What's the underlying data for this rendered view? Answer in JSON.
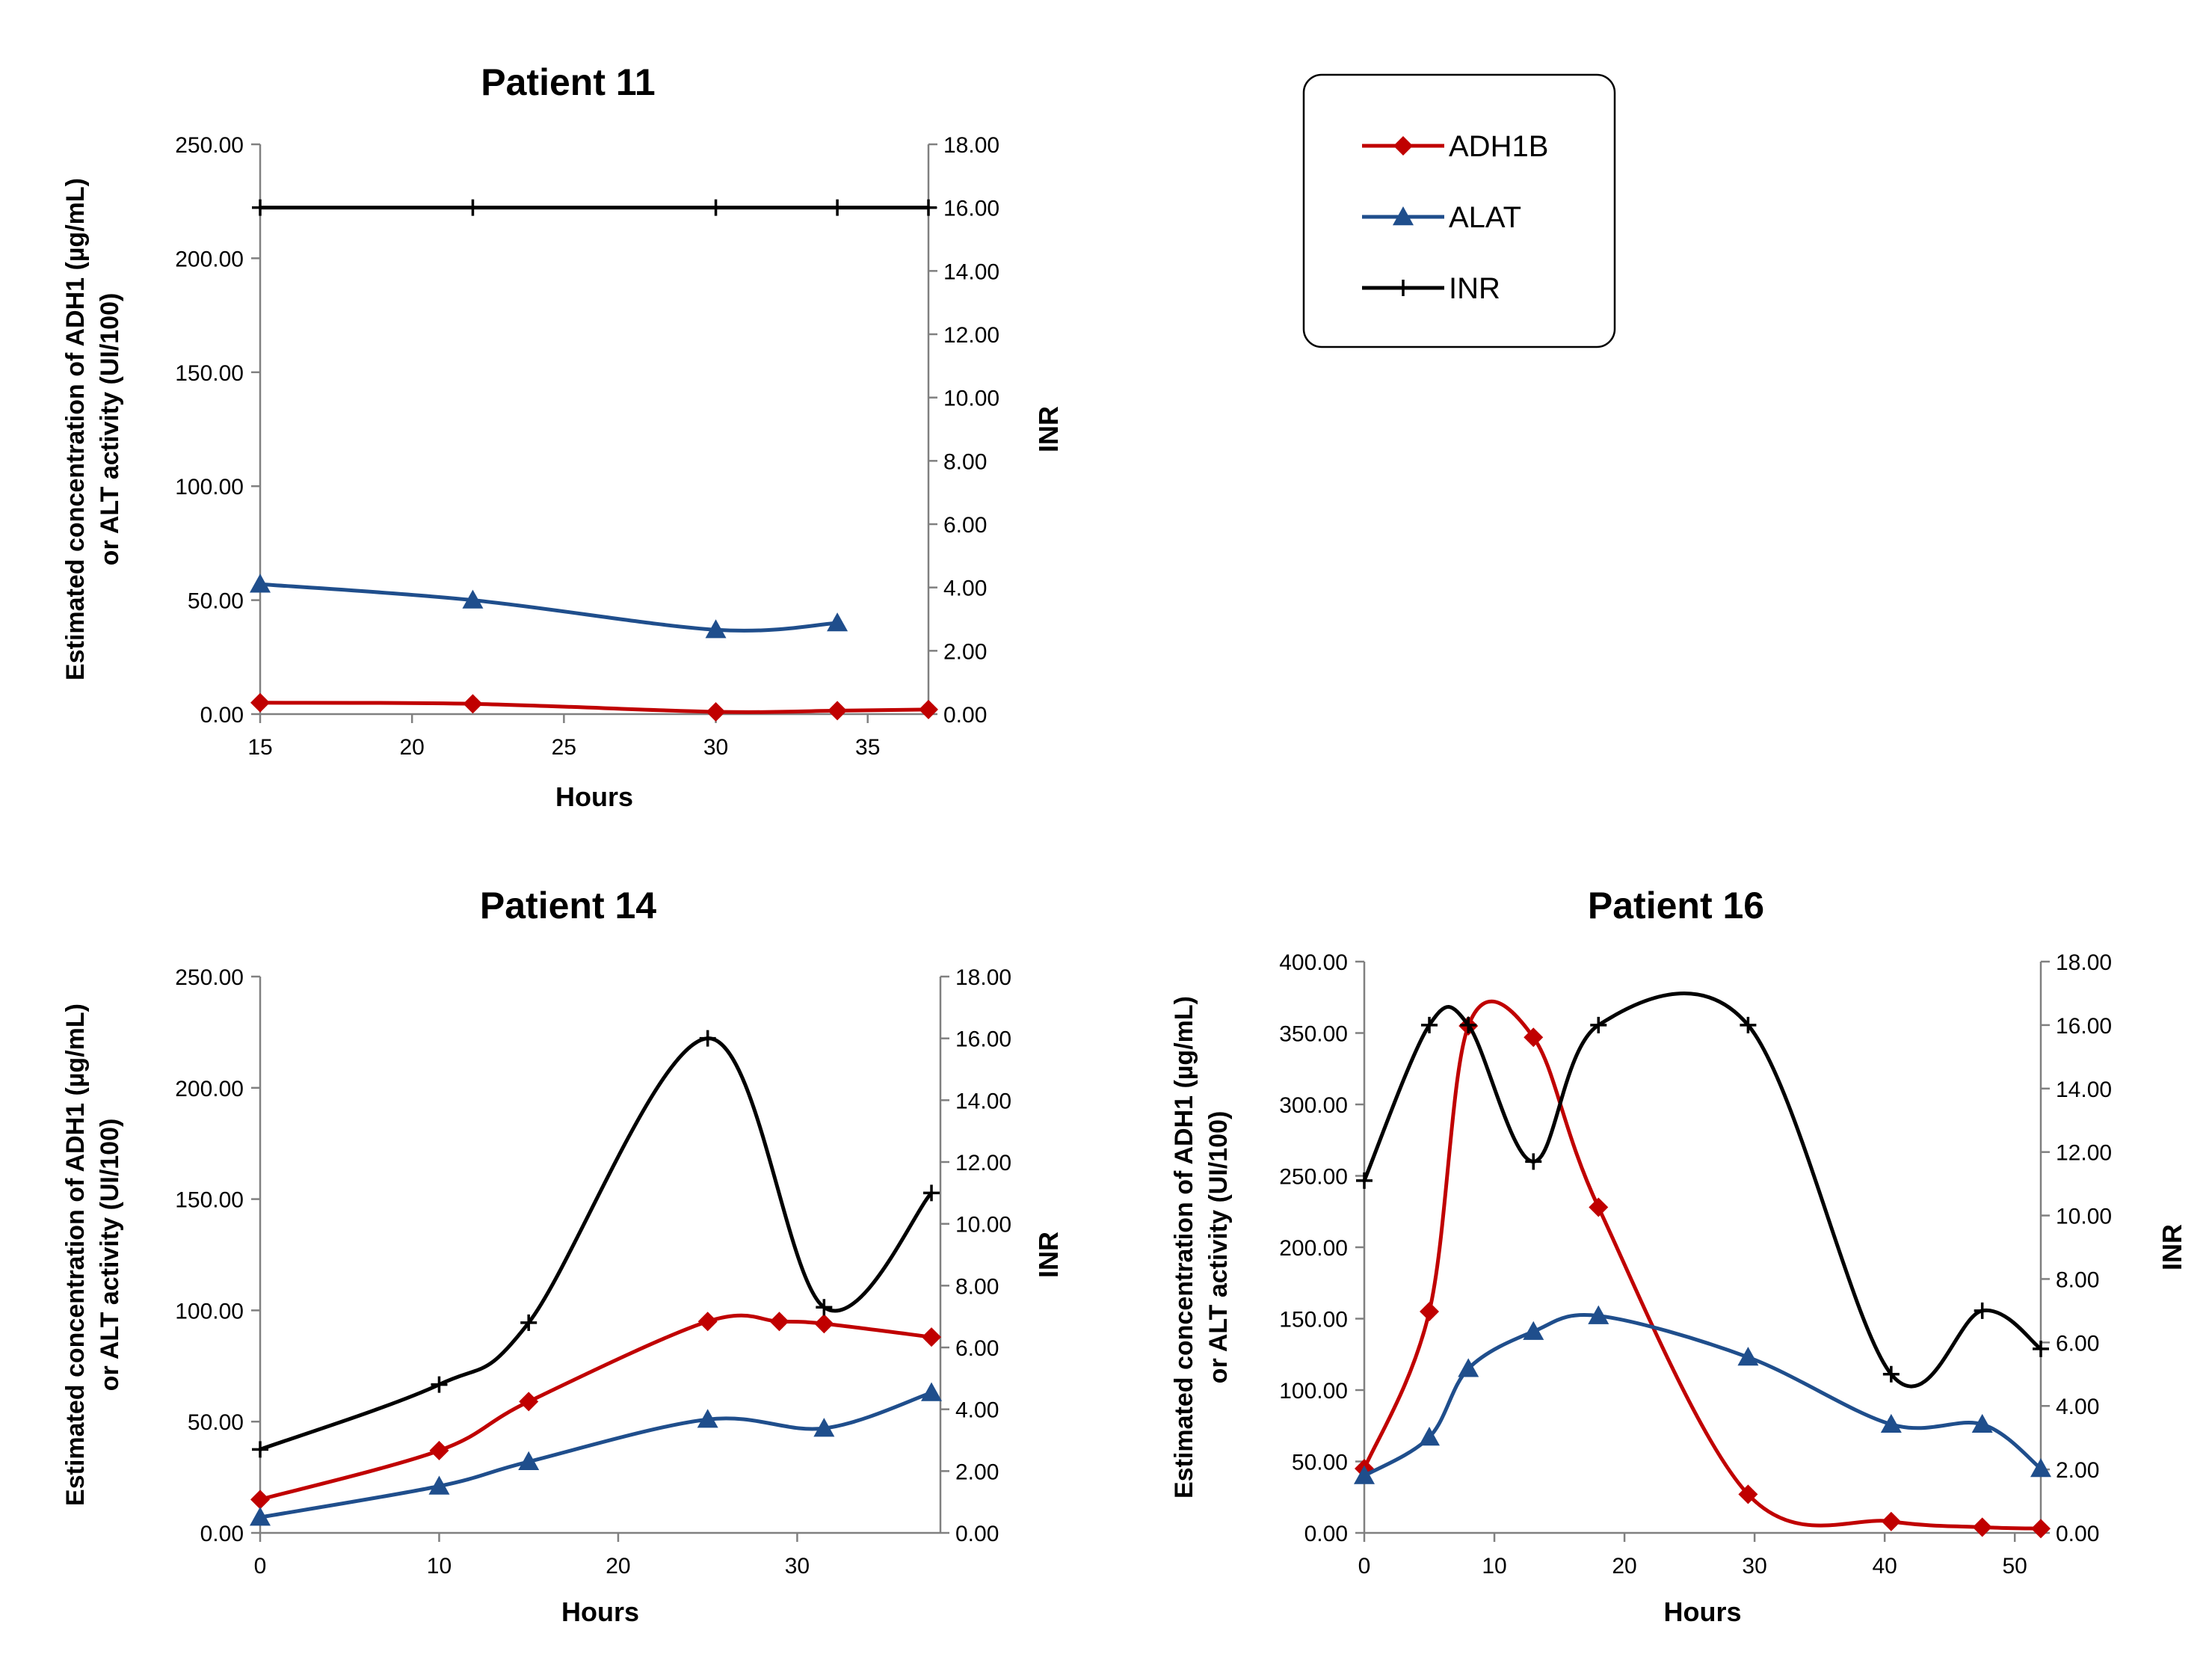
{
  "legend": {
    "entries": [
      {
        "label": "ADH1B",
        "color": "#c00000",
        "marker": "diamond"
      },
      {
        "label": "ALAT",
        "color": "#1f4e8c",
        "marker": "triangle"
      },
      {
        "label": "INR",
        "color": "#000000",
        "marker": "plus"
      }
    ]
  },
  "chart_data": [
    {
      "type": "line",
      "title": "Patient 11",
      "xlabel": "Hours",
      "ylabel_line1": "Estimated concentration of ADH1 (µg/mL)",
      "ylabel_line2": "or ALT activity (UI/100)",
      "y2label": "INR",
      "xlim": [
        15,
        37
      ],
      "xticks": [
        15,
        20,
        25,
        30,
        35
      ],
      "ylim": [
        0,
        250
      ],
      "yticks": [
        "0.00",
        "50.00",
        "100.00",
        "150.00",
        "200.00",
        "250.00"
      ],
      "y2lim": [
        0,
        18
      ],
      "y2ticks": [
        "0.00",
        "2.00",
        "4.00",
        "6.00",
        "8.00",
        "10.00",
        "12.00",
        "14.00",
        "16.00",
        "18.00"
      ],
      "series": [
        {
          "name": "ADH1B",
          "axis": "left",
          "x": [
            15,
            22,
            30,
            34,
            37
          ],
          "y": [
            5,
            4.5,
            1,
            1.5,
            2
          ]
        },
        {
          "name": "ALAT",
          "axis": "left",
          "x": [
            15,
            22,
            30,
            34
          ],
          "y": [
            57,
            50,
            37,
            40
          ]
        },
        {
          "name": "INR",
          "axis": "right",
          "x": [
            15,
            22,
            30,
            34,
            37
          ],
          "y": [
            16,
            16,
            16,
            16,
            16
          ]
        }
      ]
    },
    {
      "type": "line",
      "title": "Patient 14",
      "xlabel": "Hours",
      "ylabel_line1": "Estimated concentration of ADH1 (µg/mL)",
      "ylabel_line2": "or ALT activity (UI/100)",
      "y2label": "INR",
      "xlim": [
        0,
        38
      ],
      "xticks": [
        0,
        10,
        20,
        30
      ],
      "ylim": [
        0,
        250
      ],
      "yticks": [
        "0.00",
        "50.00",
        "100.00",
        "150.00",
        "200.00",
        "250.00"
      ],
      "y2lim": [
        0,
        18
      ],
      "y2ticks": [
        "0.00",
        "2.00",
        "4.00",
        "6.00",
        "8.00",
        "10.00",
        "12.00",
        "14.00",
        "16.00",
        "18.00"
      ],
      "series": [
        {
          "name": "ADH1B",
          "axis": "left",
          "x": [
            0,
            10,
            15,
            25,
            29,
            31.5,
            37.5
          ],
          "y": [
            15,
            37,
            59,
            95,
            95,
            94,
            88
          ]
        },
        {
          "name": "ALAT",
          "axis": "left",
          "x": [
            0,
            10,
            15,
            25,
            31.5,
            37.5
          ],
          "y": [
            7,
            21,
            32,
            51,
            47,
            63
          ]
        },
        {
          "name": "INR",
          "axis": "right",
          "x": [
            0,
            10,
            15,
            25,
            31.5,
            37.5
          ],
          "y": [
            2.7,
            4.8,
            6.8,
            16,
            7.3,
            11
          ]
        }
      ]
    },
    {
      "type": "line",
      "title": "Patient 16",
      "xlabel": "Hours",
      "ylabel_line1": "Estimated concentration of ADH1 (µg/mL)",
      "ylabel_line2": "or ALT activity (UI/100)",
      "y2label": "INR",
      "xlim": [
        0,
        52
      ],
      "xticks": [
        0,
        10,
        20,
        30,
        40,
        50
      ],
      "ylim": [
        0,
        400
      ],
      "yticks": [
        "0.00",
        "50.00",
        "100.00",
        "150.00",
        "200.00",
        "250.00",
        "300.00",
        "350.00",
        "400.00"
      ],
      "y2lim": [
        0,
        18
      ],
      "y2ticks": [
        "0.00",
        "2.00",
        "4.00",
        "6.00",
        "8.00",
        "10.00",
        "12.00",
        "14.00",
        "16.00",
        "18.00"
      ],
      "series": [
        {
          "name": "ADH1B",
          "axis": "left",
          "x": [
            0,
            5,
            8,
            13,
            18,
            29.5,
            40.5,
            47.5,
            52
          ],
          "y": [
            45,
            155,
            355,
            347,
            228,
            27,
            8,
            4,
            3
          ]
        },
        {
          "name": "ALAT",
          "axis": "left",
          "x": [
            0,
            5,
            8,
            13,
            18,
            29.5,
            40.5,
            47.5,
            52
          ],
          "y": [
            40,
            67,
            115,
            141,
            152,
            123,
            76,
            76,
            45
          ]
        },
        {
          "name": "INR",
          "axis": "right",
          "x": [
            0,
            5,
            8,
            13,
            18,
            29.5,
            40.5,
            47.5,
            52
          ],
          "y": [
            11.1,
            16,
            16,
            11.7,
            16,
            16,
            5,
            7,
            5.8
          ]
        }
      ]
    }
  ]
}
